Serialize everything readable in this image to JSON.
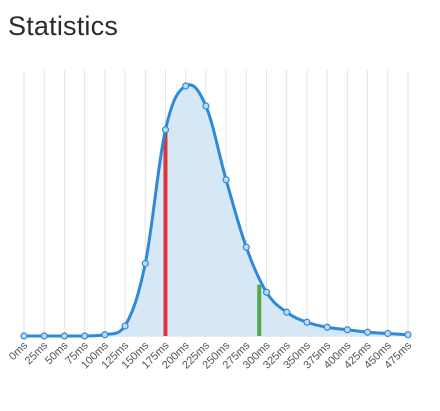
{
  "page": {
    "title": "Statistics"
  },
  "chart_data": {
    "type": "area",
    "title": "Statistics",
    "xlabel": "",
    "ylabel": "",
    "categories": [
      "0ms",
      "25ms",
      "50ms",
      "75ms",
      "100ms",
      "125ms",
      "150ms",
      "175ms",
      "200ms",
      "225ms",
      "250ms",
      "275ms",
      "300ms",
      "325ms",
      "350ms",
      "375ms",
      "400ms",
      "425ms",
      "450ms",
      "475ms"
    ],
    "x": [
      0,
      25,
      50,
      75,
      100,
      125,
      150,
      175,
      200,
      225,
      250,
      275,
      300,
      325,
      350,
      375,
      400,
      425,
      450,
      475
    ],
    "ylim": [
      0,
      1
    ],
    "xlim": [
      0,
      475
    ],
    "series": [
      {
        "values": [
          0.0,
          0.0,
          0.0,
          0.0,
          0.005,
          0.04,
          0.29,
          0.825,
          1.0,
          0.92,
          0.625,
          0.355,
          0.175,
          0.095,
          0.055,
          0.035,
          0.025,
          0.015,
          0.01,
          0.005
        ]
      }
    ],
    "markers": [
      {
        "x": 175,
        "y": 0.825,
        "color": "#d9363a"
      },
      {
        "x": 291,
        "y": 0.205,
        "color": "#55a84a"
      }
    ],
    "grid": true,
    "colors": {
      "line": "#2e8ad8",
      "fill": "#d6e8f6",
      "grid": "#e4e4e4",
      "point_fill": "#bcd9f1"
    }
  }
}
